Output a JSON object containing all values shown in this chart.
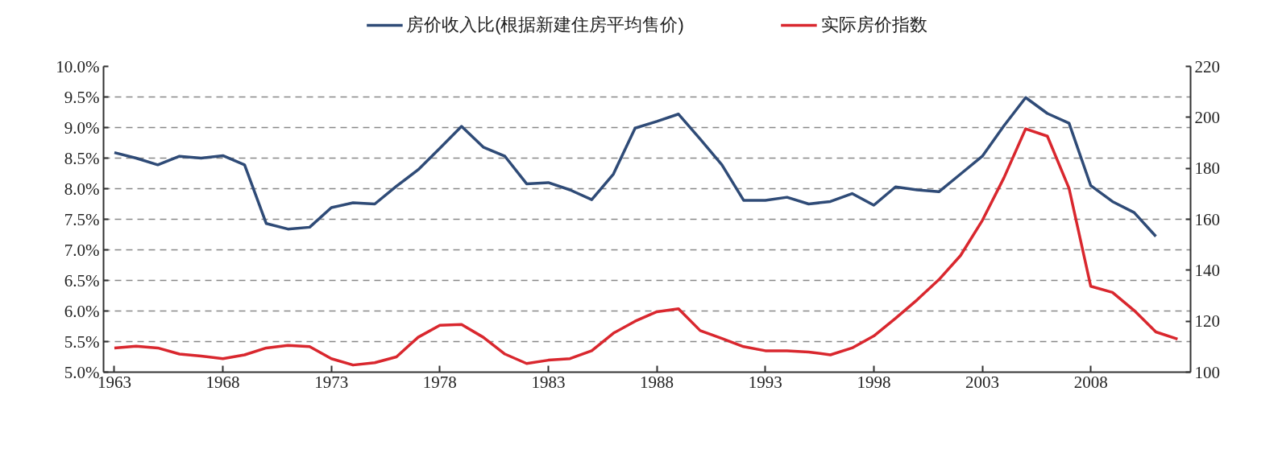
{
  "chart_data": {
    "type": "line",
    "x": [
      1963,
      1964,
      1965,
      1966,
      1967,
      1968,
      1969,
      1970,
      1971,
      1972,
      1973,
      1974,
      1975,
      1976,
      1977,
      1978,
      1979,
      1980,
      1981,
      1982,
      1983,
      1984,
      1985,
      1986,
      1987,
      1988,
      1989,
      1990,
      1991,
      1992,
      1993,
      1994,
      1995,
      1996,
      1997,
      1998,
      1999,
      2000,
      2001,
      2002,
      2003,
      2004,
      2005,
      2006,
      2007,
      2008,
      2009,
      2010,
      2011,
      2012
    ],
    "series": [
      {
        "name": "房价收入比(根据新建住房平均售价)",
        "color": "#2f4b77",
        "values": [
          8.59,
          8.5,
          8.39,
          8.53,
          8.5,
          8.54,
          8.39,
          7.43,
          7.34,
          7.37,
          7.69,
          7.77,
          7.75,
          8.04,
          8.31,
          8.66,
          9.02,
          8.68,
          8.53,
          8.08,
          8.1,
          7.98,
          7.82,
          8.24,
          8.99,
          9.1,
          9.22,
          8.81,
          8.39,
          7.81,
          7.81,
          7.86,
          7.75,
          7.79,
          7.92,
          7.73,
          8.03,
          7.98,
          7.95,
          8.24,
          8.53,
          9.03,
          9.49,
          9.23,
          9.07,
          8.05,
          7.79,
          7.61,
          7.22,
          null
        ]
      },
      {
        "name": "实际房价指数",
        "color": "#d9272e",
        "axis": "y2",
        "values": [
          109.5,
          110.2,
          109.5,
          107.1,
          106.3,
          105.3,
          106.8,
          109.5,
          110.5,
          110.0,
          105.3,
          102.8,
          103.7,
          106.0,
          113.7,
          118.4,
          118.7,
          113.7,
          107.1,
          103.4,
          104.7,
          105.3,
          108.4,
          115.3,
          120.0,
          123.7,
          124.9,
          116.3,
          113.2,
          110.0,
          108.4,
          108.4,
          107.9,
          106.8,
          109.5,
          114.2,
          121.1,
          128.4,
          136.3,
          145.8,
          159.5,
          176.3,
          195.5,
          192.6,
          172.1,
          133.7,
          131.3,
          124.2,
          115.8,
          113.0
        ]
      }
    ],
    "xlim": [
      1962.5,
      2012.6
    ],
    "xticks": [
      1963,
      1968,
      1973,
      1978,
      1983,
      1988,
      1993,
      1998,
      2003,
      2008
    ],
    "ylim": [
      5.0,
      10.0
    ],
    "yticks": [
      {
        "value": 5.0,
        "label": "5.0%"
      },
      {
        "value": 5.5,
        "label": "5.5%"
      },
      {
        "value": 6.0,
        "label": "6.0%"
      },
      {
        "value": 6.5,
        "label": "6.5%"
      },
      {
        "value": 7.0,
        "label": "7.0%"
      },
      {
        "value": 7.5,
        "label": "7.5%"
      },
      {
        "value": 8.0,
        "label": "8.0%"
      },
      {
        "value": 8.5,
        "label": "8.5%"
      },
      {
        "value": 9.0,
        "label": "9.0%"
      },
      {
        "value": 9.5,
        "label": "9.5%"
      },
      {
        "value": 10.0,
        "label": "10.0%"
      }
    ],
    "y2lim": [
      100,
      220
    ],
    "y2ticks": [
      100,
      120,
      140,
      160,
      180,
      200,
      220
    ],
    "grid": "y",
    "legend": "top",
    "line_style": "solid",
    "marker": "none"
  }
}
